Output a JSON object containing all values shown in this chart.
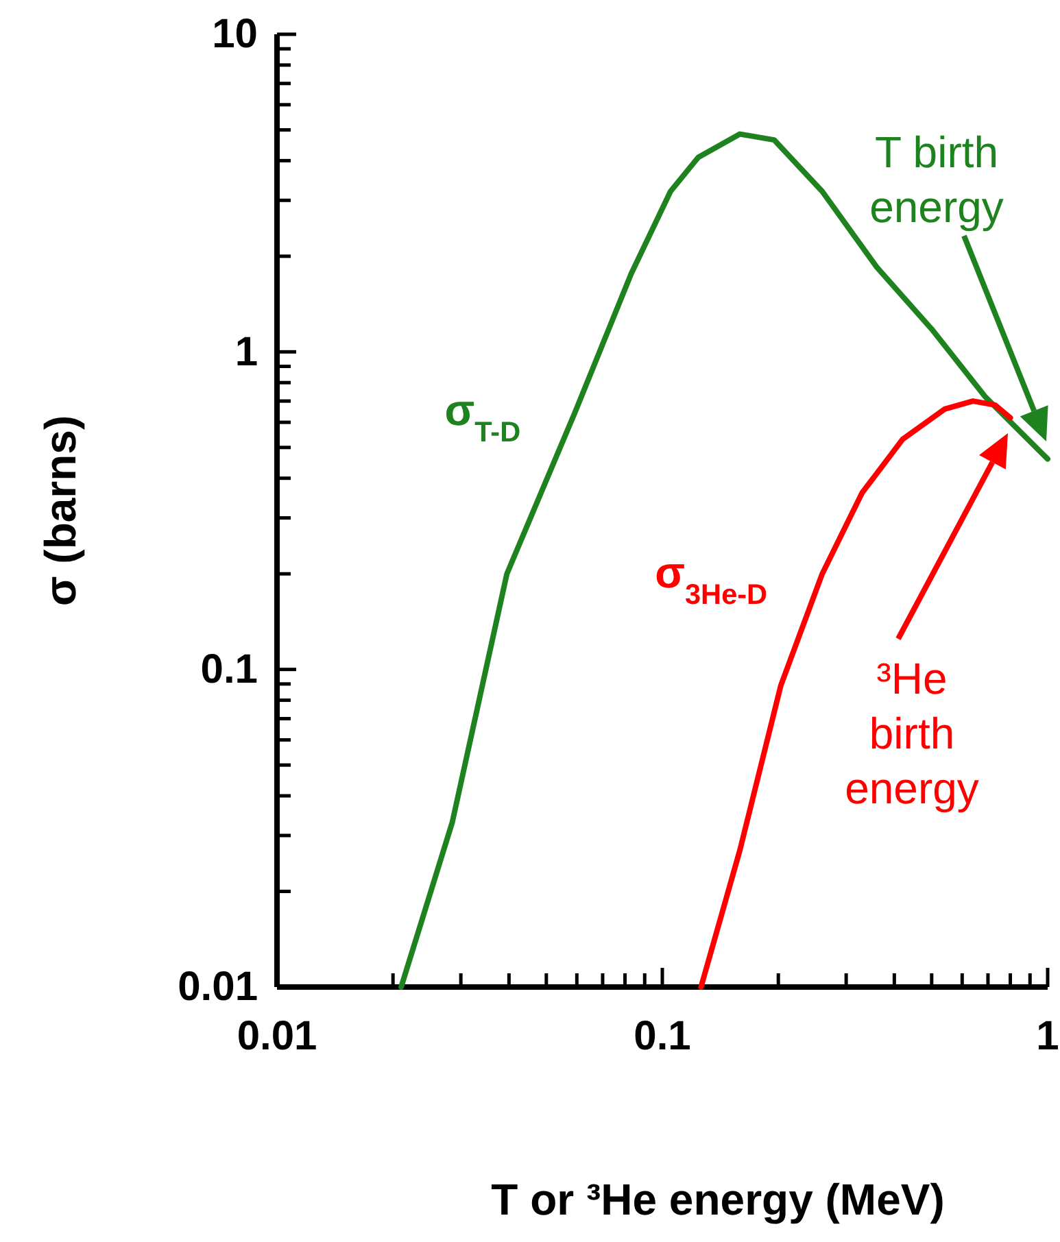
{
  "chart_data": {
    "type": "line",
    "xlabel": "T or ³He energy (MeV)",
    "ylabel": "σ (barns)",
    "log": "xy",
    "grid": false,
    "marker": "none",
    "line_style": "solid",
    "xlim": [
      0.01,
      1
    ],
    "ylim": [
      0.01,
      10
    ],
    "xticks": [
      0.01,
      {
        "value": 0.02,
        "label": null
      },
      {
        "value": 0.03,
        "label": null
      },
      {
        "value": 0.04,
        "label": null
      },
      {
        "value": 0.05,
        "label": null
      },
      {
        "value": 0.06,
        "label": null
      },
      {
        "value": 0.07,
        "label": null
      },
      {
        "value": 0.08,
        "label": null
      },
      {
        "value": 0.09,
        "label": null
      },
      0.1,
      {
        "value": 0.2,
        "label": null
      },
      {
        "value": 0.3,
        "label": null
      },
      {
        "value": 0.4,
        "label": null
      },
      {
        "value": 0.5,
        "label": null
      },
      {
        "value": 0.6,
        "label": null
      },
      {
        "value": 0.7,
        "label": null
      },
      {
        "value": 0.8,
        "label": null
      },
      {
        "value": 0.9,
        "label": null
      },
      1
    ],
    "yticks": [
      0.01,
      {
        "value": 0.02,
        "label": null
      },
      {
        "value": 0.03,
        "label": null
      },
      {
        "value": 0.04,
        "label": null
      },
      {
        "value": 0.05,
        "label": null
      },
      {
        "value": 0.06,
        "label": null
      },
      {
        "value": 0.07,
        "label": null
      },
      {
        "value": 0.08,
        "label": null
      },
      {
        "value": 0.09,
        "label": null
      },
      0.1,
      {
        "value": 0.2,
        "label": null
      },
      {
        "value": 0.3,
        "label": null
      },
      {
        "value": 0.4,
        "label": null
      },
      {
        "value": 0.5,
        "label": null
      },
      {
        "value": 0.6,
        "label": null
      },
      {
        "value": 0.7,
        "label": null
      },
      {
        "value": 0.8,
        "label": null
      },
      {
        "value": 0.9,
        "label": null
      },
      1,
      {
        "value": 2,
        "label": null
      },
      {
        "value": 3,
        "label": null
      },
      {
        "value": 4,
        "label": null
      },
      {
        "value": 5,
        "label": null
      },
      {
        "value": 6,
        "label": null
      },
      {
        "value": 7,
        "label": null
      },
      {
        "value": 8,
        "label": null
      },
      {
        "value": 9,
        "label": null
      },
      10
    ],
    "series": [
      {
        "name": "σ$_{T-D}$",
        "color": "#1e821e",
        "x": [
          0.021,
          0.0285,
          0.0395,
          0.0595,
          0.083,
          0.105,
          0.124,
          0.159,
          0.195,
          0.26,
          0.36,
          0.5,
          0.69,
          1.0
        ],
        "values": [
          0.01,
          0.033,
          0.2,
          0.65,
          1.76,
          3.2,
          4.1,
          4.85,
          4.65,
          3.2,
          1.85,
          1.18,
          0.72,
          0.46
        ]
      },
      {
        "name": "σ$_{3He-D}$",
        "color": "#ff0000",
        "x": [
          0.126,
          0.159,
          0.203,
          0.26,
          0.33,
          0.42,
          0.54,
          0.64,
          0.73,
          0.8
        ],
        "values": [
          0.01,
          0.027,
          0.089,
          0.2,
          0.36,
          0.53,
          0.66,
          0.7,
          0.68,
          0.62
        ]
      }
    ],
    "annotations": [
      "T birth energy",
      "³He birth energy"
    ]
  }
}
